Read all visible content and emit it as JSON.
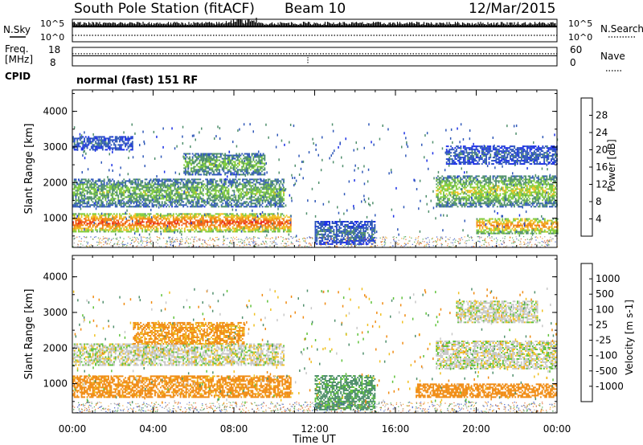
{
  "header": {
    "station": "South Pole Station (fitACF)",
    "beam": "Beam 10",
    "date": "12/Mar/2015"
  },
  "aux_panels": {
    "nsky": {
      "label": "N.Sky",
      "left_ticks": [
        "10^5",
        "10^0"
      ],
      "right_ticks": [
        "10^5",
        "10^0"
      ],
      "right_label": "N.Search"
    },
    "freq": {
      "label_line1": "Freq.",
      "label_line2": "[MHz]",
      "left_ticks": [
        "18",
        "8"
      ],
      "right_ticks": [
        "60",
        "0"
      ],
      "right_label": "Nave"
    },
    "cpid": {
      "label": "CPID",
      "text": "normal (fast) 151 RF"
    }
  },
  "chart_data": [
    {
      "type": "heatmap",
      "panel": "power",
      "title": "",
      "xlabel": "",
      "ylabel": "Slant Range [km]",
      "x_ticks": [
        "00:00",
        "04:00",
        "08:00",
        "12:00",
        "16:00",
        "20:00",
        "00:00"
      ],
      "y_ticks": [
        1000,
        2000,
        3000,
        4000
      ],
      "ylim": [
        180,
        4600
      ],
      "colorbar": {
        "label": "Power [dB]",
        "ticks": [
          4,
          8,
          12,
          16,
          20,
          24,
          28
        ],
        "range": [
          0,
          32
        ],
        "colors": [
          "#1a2fe6",
          "#2f58b8",
          "#4f8f6c",
          "#7fcc3a",
          "#f0c020",
          "#f08a10",
          "#f05a10",
          "#e81010"
        ]
      },
      "echo_bands": [
        {
          "t_start": 0.0,
          "t_end": 10.8,
          "r_low": 600,
          "r_high": 1100,
          "level": 24
        },
        {
          "t_start": 0.0,
          "t_end": 10.5,
          "r_low": 1300,
          "r_high": 2100,
          "level": 12
        },
        {
          "t_start": 5.5,
          "t_end": 9.5,
          "r_low": 2200,
          "r_high": 2800,
          "level": 12
        },
        {
          "t_start": 0.0,
          "t_end": 3.0,
          "r_low": 2900,
          "r_high": 3300,
          "level": 6
        },
        {
          "t_start": 12.0,
          "t_end": 15.0,
          "r_low": 250,
          "r_high": 900,
          "level": 7
        },
        {
          "t_start": 18.0,
          "t_end": 24.0,
          "r_low": 1300,
          "r_high": 2200,
          "level": 14
        },
        {
          "t_start": 18.5,
          "t_end": 24.0,
          "r_low": 2500,
          "r_high": 3000,
          "level": 6
        },
        {
          "t_start": 20.0,
          "t_end": 24.0,
          "r_low": 550,
          "r_high": 1000,
          "level": 20
        }
      ]
    },
    {
      "type": "heatmap",
      "panel": "velocity",
      "title": "",
      "xlabel": "Time UT",
      "ylabel": "Slant Range [km]",
      "x_ticks": [
        "00:00",
        "04:00",
        "08:00",
        "12:00",
        "16:00",
        "20:00",
        "00:00"
      ],
      "y_ticks": [
        1000,
        2000,
        3000,
        4000
      ],
      "ylim": [
        180,
        4600
      ],
      "colorbar": {
        "label": "Velocity [m s-1]",
        "ticks": [
          "1000",
          "500",
          "100",
          "25",
          "-25",
          "-100",
          "-500",
          "-1000"
        ],
        "colors": [
          "#1a2fe6",
          "#2f58b8",
          "#4f8f6c",
          "#5fc23a",
          "#c8c8c8",
          "#f0c020",
          "#f08a10",
          "#f05a10",
          "#e81010"
        ]
      },
      "echo_bands": [
        {
          "t_start": 0.0,
          "t_end": 10.8,
          "r_low": 600,
          "r_high": 1200,
          "level": -200
        },
        {
          "t_start": 0.0,
          "t_end": 10.5,
          "r_low": 1500,
          "r_high": 2100,
          "level": 0
        },
        {
          "t_start": 3.0,
          "t_end": 8.5,
          "r_low": 2100,
          "r_high": 2700,
          "level": -150
        },
        {
          "t_start": 12.0,
          "t_end": 15.0,
          "r_low": 250,
          "r_high": 1200,
          "level": 150
        },
        {
          "t_start": 17.0,
          "t_end": 24.0,
          "r_low": 600,
          "r_high": 1000,
          "level": -250
        },
        {
          "t_start": 18.0,
          "t_end": 24.0,
          "r_low": 1400,
          "r_high": 2200,
          "level": 0
        },
        {
          "t_start": 19.0,
          "t_end": 23.0,
          "r_low": 2700,
          "r_high": 3300,
          "level": 0
        }
      ]
    }
  ]
}
